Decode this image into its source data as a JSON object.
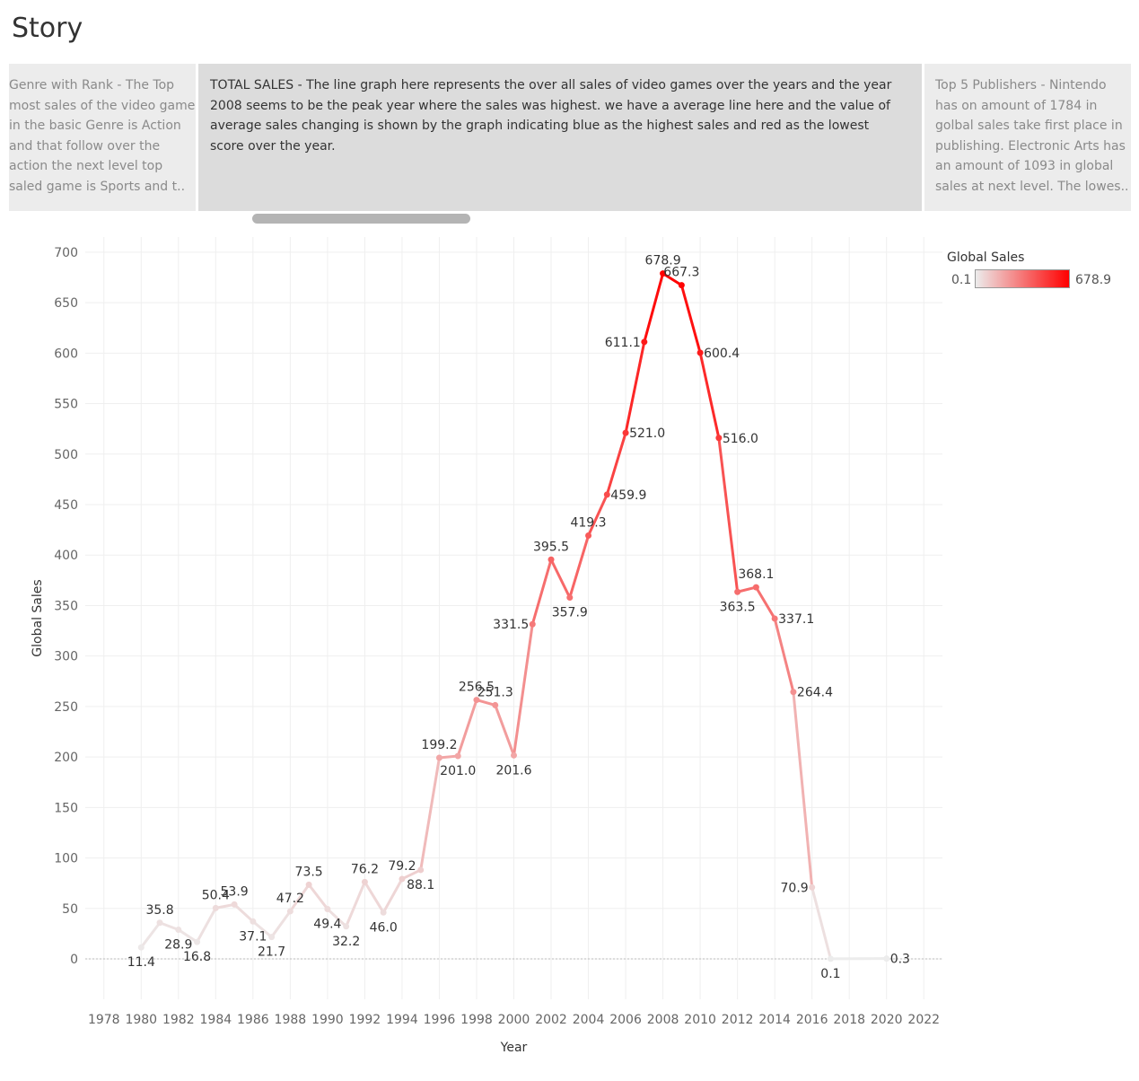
{
  "title": "Story",
  "story_points": [
    {
      "text": "Genre with Rank - The Top most sales of the video game in the  basic Genre is Action and that follow over the action the next level top saled game is Sports and t.."
    },
    {
      "text": "TOTAL SALES - The line graph here represents the over all sales of video games over the years and the year 2008 seems to be the peak year where the sales was highest. we have a average line here and the value of average sales changing is shown by the graph indicating blue as the highest sales and red as the lowest score over the year."
    },
    {
      "text": "Top 5 Publishers - Nintendo has on amount of 1784 in golbal sales take first place in publishing. Electronic Arts has an amount of 1093 in global sales at next level. The lowes.."
    }
  ],
  "legend": {
    "title": "Global Sales",
    "min_label": "0.1",
    "max_label": "678.9",
    "color_low": "#ececec",
    "color_high": "#ff0000"
  },
  "chart_data": {
    "type": "line",
    "title": "",
    "xlabel": "Year",
    "ylabel": "Global Sales",
    "xlim": [
      1977,
      2023
    ],
    "ylim": [
      -40,
      715
    ],
    "x_ticks": [
      1978,
      1980,
      1982,
      1984,
      1986,
      1988,
      1990,
      1992,
      1994,
      1996,
      1998,
      2000,
      2002,
      2004,
      2006,
      2008,
      2010,
      2012,
      2014,
      2016,
      2018,
      2020,
      2022
    ],
    "y_ticks": [
      0,
      50,
      100,
      150,
      200,
      250,
      300,
      350,
      400,
      450,
      500,
      550,
      600,
      650,
      700
    ],
    "grid": true,
    "legend_position": "top-right",
    "series": [
      {
        "x": [
          1980,
          1981,
          1982,
          1983,
          1984,
          1985,
          1986,
          1987,
          1988,
          1989,
          1990,
          1991,
          1992,
          1993,
          1994,
          1995,
          1996,
          1997,
          1998,
          1999,
          2000,
          2001,
          2002,
          2003,
          2004,
          2005,
          2006,
          2007,
          2008,
          2009,
          2010,
          2011,
          2012,
          2013,
          2014,
          2015,
          2016,
          2017,
          2020
        ],
        "values": [
          11.4,
          35.8,
          28.9,
          16.8,
          50.4,
          53.9,
          37.1,
          21.7,
          47.2,
          73.5,
          49.4,
          32.2,
          76.2,
          46.0,
          79.2,
          88.1,
          199.2,
          201.0,
          256.5,
          251.3,
          201.6,
          331.5,
          395.5,
          357.9,
          419.3,
          459.9,
          521.0,
          611.1,
          678.9,
          667.3,
          600.4,
          516.0,
          363.5,
          368.1,
          337.1,
          264.4,
          70.9,
          0.1,
          0.3
        ],
        "labels": [
          "11.4",
          "35.8",
          "28.9",
          "16.8",
          "50.4",
          "53.9",
          "37.1",
          "21.7",
          "47.2",
          "73.5",
          "49.4",
          "32.2",
          "76.2",
          "46.0",
          "79.2",
          "88.1",
          "199.2",
          "201.0",
          "256.5",
          "251.3",
          "201.6",
          "331.5",
          "395.5",
          "357.9",
          "419.3",
          "459.9",
          "521.0",
          "611.1",
          "678.9",
          "667.3",
          "600.4",
          "516.0",
          "363.5",
          "368.1",
          "337.1",
          "264.4",
          "70.9",
          "0.1",
          "0.3"
        ],
        "label_side": [
          "below",
          "above",
          "below",
          "below",
          "above",
          "above",
          "below",
          "below",
          "above",
          "above",
          "below",
          "below",
          "above",
          "below",
          "above",
          "below",
          "above",
          "below",
          "above",
          "above",
          "below",
          "left",
          "above",
          "below",
          "above",
          "right",
          "right",
          "left",
          "above",
          "above",
          "right",
          "right",
          "below",
          "above",
          "right",
          "right",
          "left",
          "below",
          "right"
        ]
      }
    ]
  }
}
